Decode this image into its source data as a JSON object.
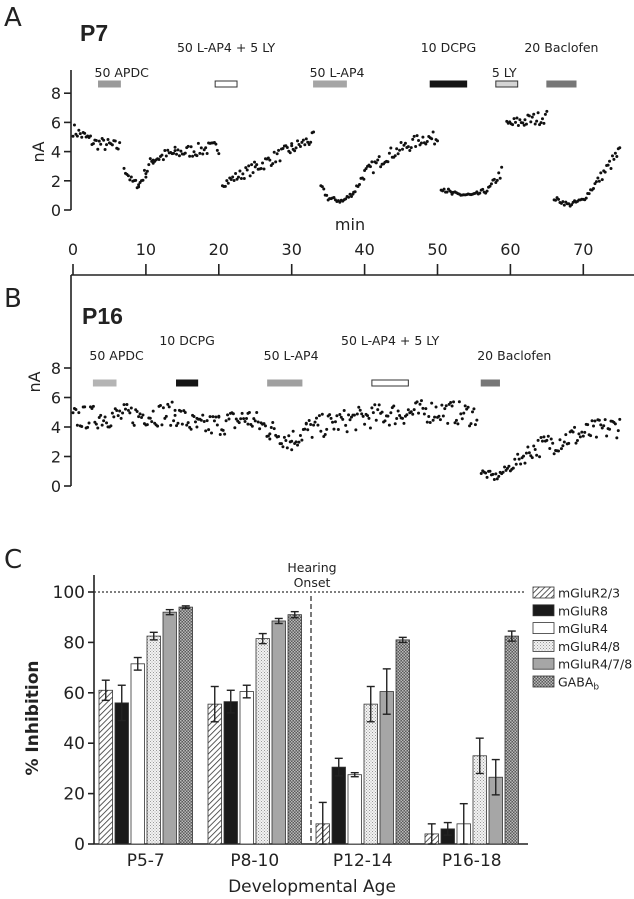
{
  "chart_data": [
    {
      "type": "scatter",
      "panel_label": "A",
      "title": "P7",
      "ylabel": "nA",
      "xlabel": "min",
      "xlim": [
        0,
        75
      ],
      "ylim": [
        0,
        8
      ],
      "yticks": [
        "0",
        "2",
        "4",
        "6",
        "8"
      ],
      "xticks": [
        "0",
        "10",
        "20",
        "30",
        "40",
        "50",
        "60",
        "70"
      ],
      "drugs": [
        {
          "label": "50 APDC",
          "start": 3.5,
          "end": 6.5,
          "color": "#9a9a9a",
          "row": 2
        },
        {
          "label": "50 L-AP4 + 5 LY",
          "start": 19.5,
          "end": 22.5,
          "color": "#ffffff",
          "row": 1
        },
        {
          "label": "50 L-AP4",
          "start": 33,
          "end": 37.5,
          "color": "#a5a5a5",
          "row": 2
        },
        {
          "label": "10 DCPG",
          "start": 49,
          "end": 54,
          "color": "#151515",
          "row": 1
        },
        {
          "label": "5 LY",
          "start": 58,
          "end": 61,
          "color": "#d4d4d4",
          "row": 2
        },
        {
          "label": "20 Baclofen",
          "start": 65,
          "end": 69,
          "color": "#777777",
          "row": 1
        }
      ],
      "trace_segments": [
        [
          [
            0,
            5.5
          ],
          [
            3,
            4.6
          ],
          [
            6.5,
            4.3
          ]
        ],
        [
          [
            7,
            3.0
          ],
          [
            8,
            2.0
          ],
          [
            9,
            1.7
          ],
          [
            10,
            2.6
          ],
          [
            11,
            3.5
          ],
          [
            14,
            3.9
          ],
          [
            20,
            4.3
          ]
        ],
        [
          [
            20.5,
            1.8
          ],
          [
            25,
            2.9
          ],
          [
            30,
            4.2
          ],
          [
            33,
            4.9
          ]
        ],
        [
          [
            34,
            1.6
          ],
          [
            35,
            0.8
          ],
          [
            37,
            0.6
          ],
          [
            38.5,
            1.2
          ],
          [
            40,
            2.5
          ],
          [
            43,
            3.7
          ],
          [
            48,
            4.9
          ],
          [
            50,
            4.9
          ]
        ],
        [
          [
            50.5,
            1.6
          ],
          [
            52,
            1.1
          ],
          [
            55,
            1.0
          ],
          [
            57,
            1.4
          ],
          [
            58.8,
            2.6
          ]
        ],
        [
          [
            59.5,
            5.8
          ],
          [
            62,
            6.1
          ],
          [
            65,
            6.4
          ]
        ],
        [
          [
            66,
            0.8
          ],
          [
            68,
            0.35
          ],
          [
            70,
            0.7
          ],
          [
            72,
            2.0
          ],
          [
            75,
            4.0
          ]
        ]
      ]
    },
    {
      "type": "scatter",
      "panel_label": "B",
      "title": "P16",
      "ylabel": "nA",
      "xlim": [
        0,
        75
      ],
      "ylim": [
        0,
        8
      ],
      "yticks": [
        "0",
        "2",
        "4",
        "6",
        "8"
      ],
      "drugs": [
        {
          "label": "50 APDC",
          "start": 2.8,
          "end": 5.9,
          "color": "#b4b4b4",
          "row": 2
        },
        {
          "label": "10 DCPG",
          "start": 14.2,
          "end": 17.1,
          "color": "#151515",
          "row": 1
        },
        {
          "label": "50 L-AP4",
          "start": 26.7,
          "end": 31.4,
          "color": "#a0a0a0",
          "row": 2
        },
        {
          "label": "50 L-AP4 + 5 LY",
          "start": 41,
          "end": 46,
          "color": "#ffffff",
          "row": 1
        },
        {
          "label": "20 Baclofen",
          "start": 56,
          "end": 58.5,
          "color": "#777777",
          "row": 2
        }
      ],
      "trace_segments": [
        [
          [
            0,
            4.6
          ],
          [
            8,
            4.8
          ],
          [
            14,
            4.9
          ],
          [
            17,
            4.0
          ],
          [
            20,
            4.2
          ],
          [
            24,
            4.6
          ],
          [
            27,
            3.8
          ],
          [
            30,
            3.1
          ],
          [
            32,
            3.8
          ],
          [
            36,
            4.3
          ],
          [
            42,
            4.8
          ],
          [
            50,
            5.1
          ],
          [
            55.5,
            4.8
          ]
        ],
        [
          [
            56,
            0.9
          ],
          [
            58,
            0.6
          ],
          [
            60,
            1.3
          ],
          [
            63,
            2.5
          ],
          [
            68,
            3.3
          ],
          [
            75,
            4.1
          ]
        ]
      ]
    },
    {
      "type": "bar",
      "panel_label": "C",
      "title": "",
      "xlabel": "Developmental Age",
      "ylabel": "% Inhibition",
      "ylim": [
        0,
        100
      ],
      "yticks": [
        "0",
        "20",
        "40",
        "60",
        "80",
        "100"
      ],
      "categories": [
        "P5-7",
        "P8-10",
        "P12-14",
        "P16-18"
      ],
      "annotation": {
        "line1": "Hearing",
        "line2": "Onset"
      },
      "reference_line": 100,
      "legend_position": "right",
      "series": [
        {
          "name": "mGluR2/3",
          "fill": "hatch",
          "values": [
            61,
            55.5,
            8,
            4
          ],
          "errors": [
            4,
            7,
            8.5,
            4
          ]
        },
        {
          "name": "mGluR8",
          "fill": "black",
          "values": [
            56,
            56.5,
            30.5,
            6
          ],
          "errors": [
            7,
            4.5,
            3.5,
            2.5
          ]
        },
        {
          "name": "mGluR4",
          "fill": "white",
          "values": [
            71.5,
            60.5,
            27.5,
            8
          ],
          "errors": [
            2.5,
            2.5,
            0.8,
            8
          ]
        },
        {
          "name": "mGluR4/8",
          "fill": "dots",
          "values": [
            82.5,
            81.5,
            55.5,
            35
          ],
          "errors": [
            1.5,
            2,
            7,
            7
          ]
        },
        {
          "name": "mGluR4/7/8",
          "fill": "gray",
          "values": [
            92,
            88.5,
            60.5,
            26.5
          ],
          "errors": [
            1,
            1,
            9,
            7
          ]
        },
        {
          "name": "GABA",
          "name_sub": "b",
          "fill": "check",
          "values": [
            94,
            91,
            81,
            82.5
          ],
          "errors": [
            0.5,
            1.2,
            1,
            2
          ]
        }
      ]
    }
  ]
}
